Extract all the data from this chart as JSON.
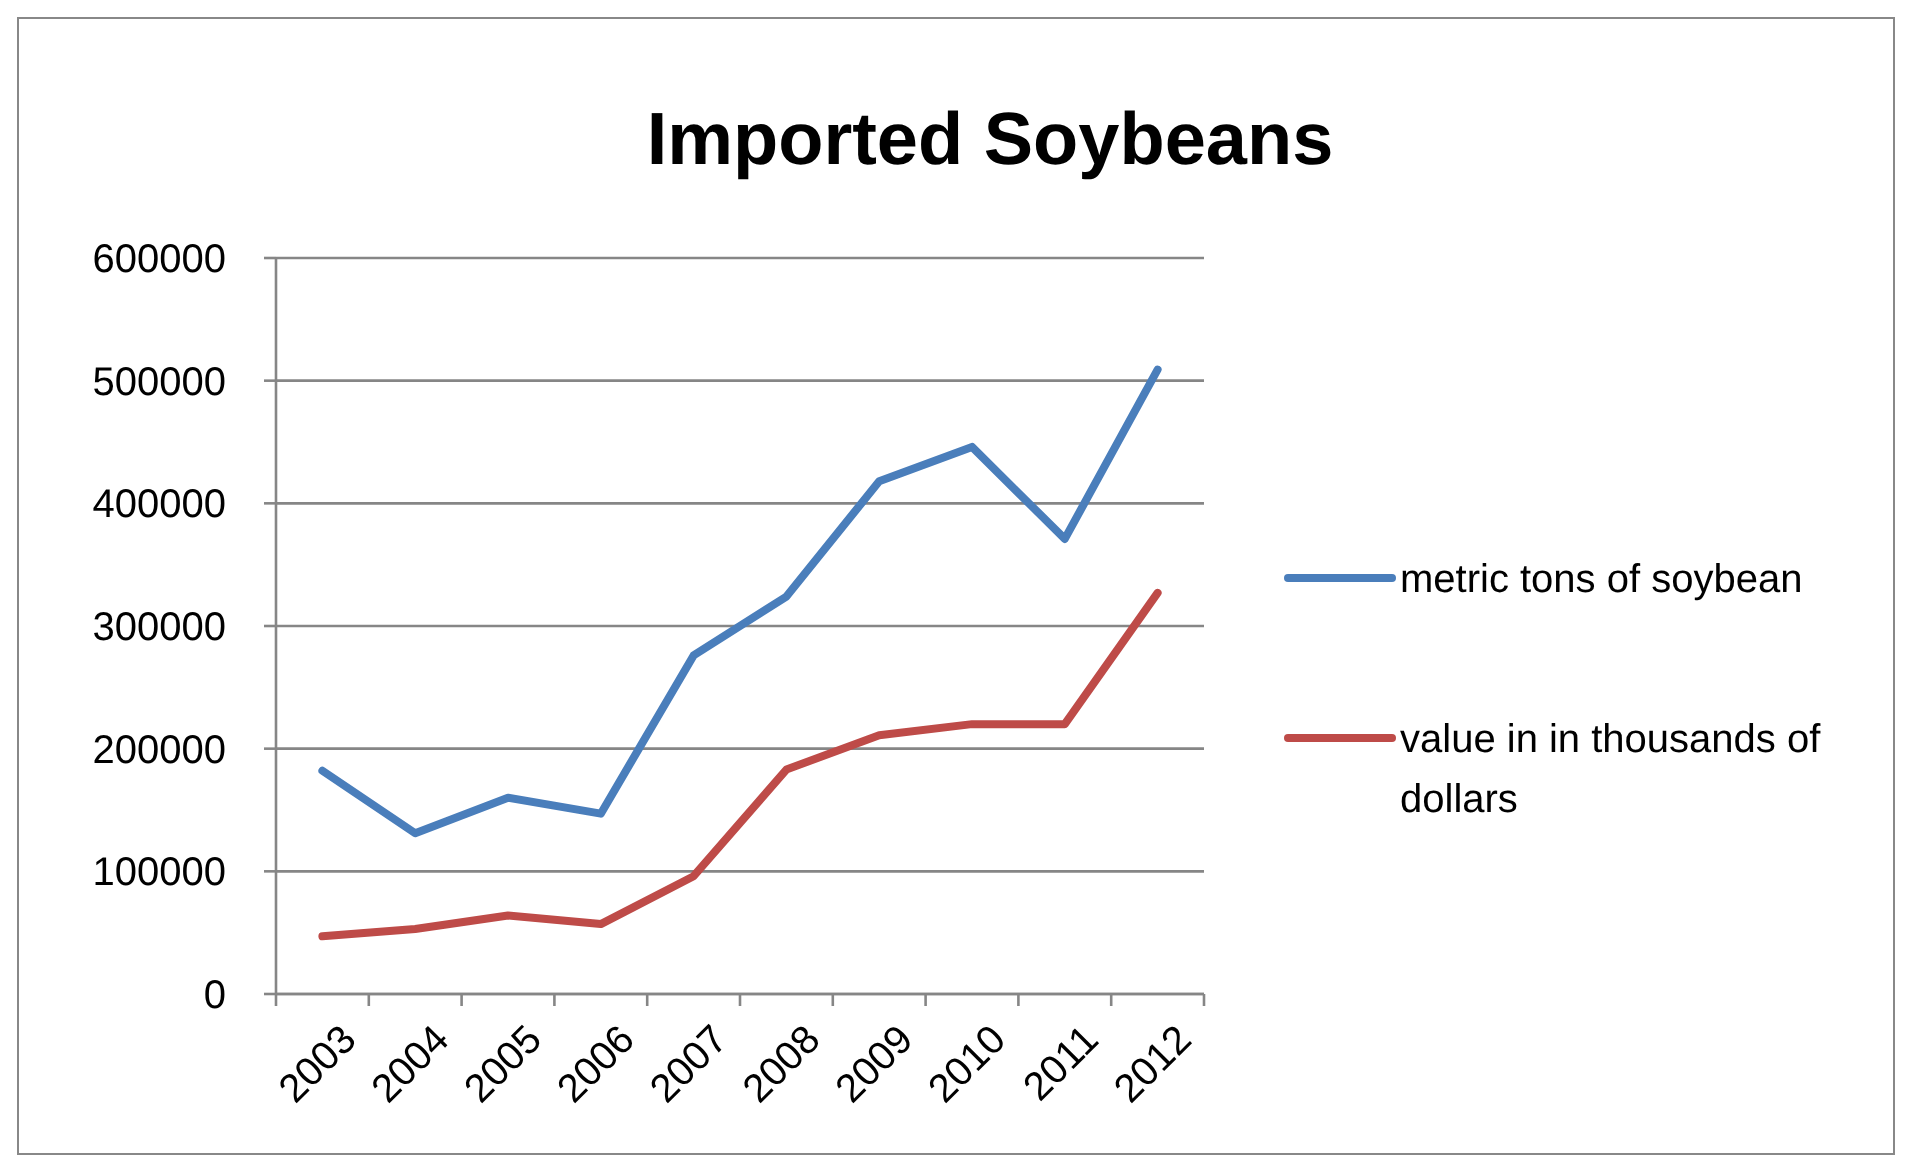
{
  "chart_data": {
    "type": "line",
    "title": "Imported Soybeans",
    "categories": [
      "2003",
      "2004",
      "2005",
      "2006",
      "2007",
      "2008",
      "2009",
      "2010",
      "2011",
      "2012"
    ],
    "series": [
      {
        "name": "metric tons of soybean",
        "color": "#4a7ebb",
        "values": [
          182000,
          131000,
          160000,
          147000,
          276000,
          324000,
          418000,
          446000,
          371000,
          509000
        ]
      },
      {
        "name": "value in in thousands of dollars",
        "color": "#be4b48",
        "values": [
          47000,
          53000,
          64000,
          57000,
          96000,
          183000,
          211000,
          220000,
          220000,
          327000
        ]
      }
    ],
    "ylim": [
      0,
      600000
    ],
    "yticks": [
      0,
      100000,
      200000,
      300000,
      400000,
      500000,
      600000
    ],
    "grid": "y",
    "legend": "right",
    "marker": "none",
    "line_style": "solid"
  }
}
